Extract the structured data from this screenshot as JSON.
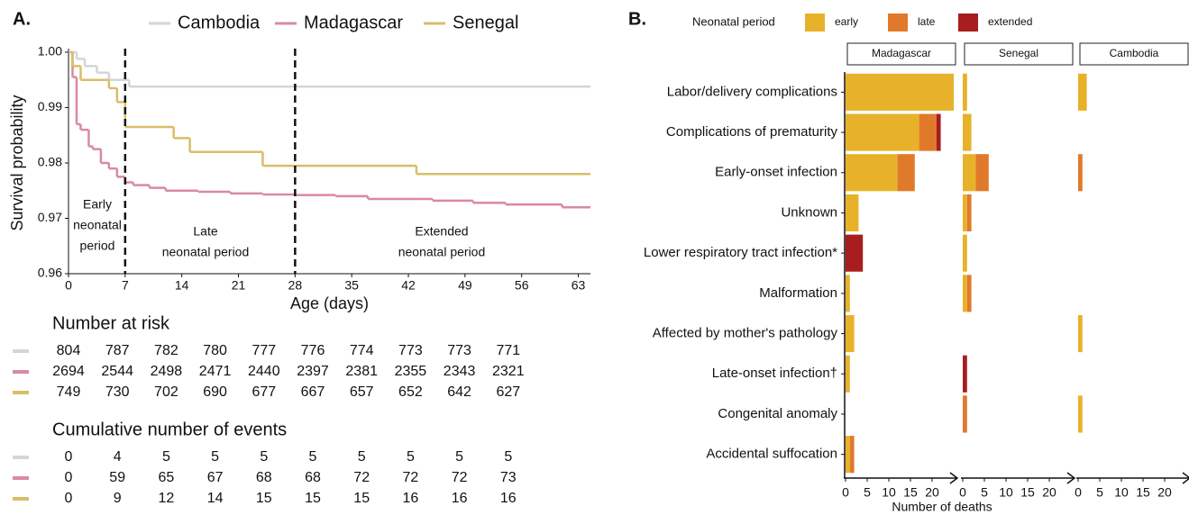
{
  "chart_data": [
    {
      "type": "line",
      "step": true,
      "title": "A.",
      "xlabel": "Age (days)",
      "ylabel": "Survival probability",
      "xlim": [
        0,
        64.5
      ],
      "xticks": [
        0,
        7,
        14,
        21,
        28,
        35,
        42,
        49,
        56,
        63
      ],
      "ylim": [
        0.96,
        1
      ],
      "yticks": [
        0.96,
        0.97,
        0.98,
        0.99,
        {
          "value": 1,
          "label": "1.00"
        }
      ],
      "vlines": [
        7,
        28
      ],
      "annotations": [
        [
          "Early",
          "neonatal",
          "period"
        ],
        [
          "Late",
          "neonatal period"
        ],
        [
          "Extended",
          "neonatal period"
        ]
      ],
      "series": [
        {
          "name": "Cambodia",
          "color": "#d2d6d9",
          "x": [
            0,
            1,
            2,
            3.5,
            5,
            7.5
          ],
          "values": [
            1,
            0.9988,
            0.9975,
            0.9963,
            0.995,
            0.9938
          ]
        },
        {
          "name": "Madagascar",
          "color": "#d98aa0",
          "x": [
            0,
            0.5,
            1,
            1.5,
            2.5,
            3,
            4,
            5,
            6,
            7,
            8,
            10,
            12,
            16,
            20,
            24,
            28,
            33,
            37,
            45,
            50,
            54,
            61
          ],
          "values": [
            1,
            0.9955,
            0.987,
            0.986,
            0.983,
            0.9825,
            0.98,
            0.979,
            0.9775,
            0.9765,
            0.976,
            0.9755,
            0.975,
            0.9748,
            0.9745,
            0.9743,
            0.9742,
            0.974,
            0.9735,
            0.9732,
            0.9728,
            0.9725,
            0.972
          ]
        },
        {
          "name": "Senegal",
          "color": "#d8be6a",
          "x": [
            0,
            0.5,
            1.5,
            5,
            6,
            7,
            13,
            15,
            24,
            43
          ],
          "values": [
            1,
            0.9975,
            0.995,
            0.9935,
            0.991,
            0.9865,
            0.9845,
            0.982,
            0.9795,
            0.978
          ]
        }
      ],
      "tables": [
        {
          "title": "Number at risk",
          "rows": [
            [
              804,
              787,
              782,
              780,
              777,
              776,
              774,
              773,
              773,
              771
            ],
            [
              2694,
              2544,
              2498,
              2471,
              2440,
              2397,
              2381,
              2355,
              2343,
              2321
            ],
            [
              749,
              730,
              702,
              690,
              677,
              667,
              657,
              652,
              642,
              627
            ]
          ]
        },
        {
          "title": "Cumulative number of events",
          "rows": [
            [
              0,
              4,
              5,
              5,
              5,
              5,
              5,
              5,
              5,
              5
            ],
            [
              0,
              59,
              65,
              67,
              68,
              68,
              72,
              72,
              72,
              73
            ],
            [
              0,
              9,
              12,
              14,
              15,
              15,
              15,
              16,
              16,
              16
            ]
          ]
        }
      ]
    },
    {
      "type": "bar",
      "orientation": "horizontal",
      "stacked": true,
      "title": "B.",
      "legend_title": "Neonatal period",
      "xlabel": "Number of deaths",
      "facets": [
        "Madagascar",
        "Senegal",
        "Cambodia"
      ],
      "categories": [
        "Labor/delivery complications",
        "Complications of prematurity",
        "Early-onset infection",
        "Unknown",
        "Lower respiratory tract infection*",
        "Malformation",
        "Affected by mother's pathology",
        "Late-onset infection†",
        "Congenital anomaly",
        "Accidental suffocation"
      ],
      "xlim": [
        0,
        25
      ],
      "xticks": [
        0,
        5,
        10,
        15,
        20
      ],
      "series": [
        {
          "name": "early",
          "color": "#e8b12a",
          "values": [
            [
              25,
              17,
              12,
              3,
              0,
              1,
              2,
              1,
              0,
              1
            ],
            [
              1,
              2,
              3,
              1,
              1,
              1,
              0,
              0,
              0,
              0
            ],
            [
              2,
              0,
              0,
              0,
              0,
              0,
              1,
              0,
              1,
              0
            ]
          ]
        },
        {
          "name": "late",
          "color": "#e07a2a",
          "values": [
            [
              0,
              4,
              4,
              0,
              0,
              0,
              0,
              0,
              0,
              1
            ],
            [
              0,
              0,
              3,
              1,
              0,
              1,
              0,
              0,
              1,
              0
            ],
            [
              0,
              0,
              1,
              0,
              0,
              0,
              0,
              0,
              0,
              0
            ]
          ]
        },
        {
          "name": "extended",
          "color": "#a81e1e",
          "values": [
            [
              0,
              1,
              0,
              0,
              4,
              0,
              0,
              0,
              0,
              0
            ],
            [
              0,
              0,
              0,
              0,
              0,
              0,
              0,
              1,
              0,
              0
            ],
            [
              0,
              0,
              0,
              0,
              0,
              0,
              0,
              0,
              0,
              0
            ]
          ]
        }
      ]
    }
  ]
}
